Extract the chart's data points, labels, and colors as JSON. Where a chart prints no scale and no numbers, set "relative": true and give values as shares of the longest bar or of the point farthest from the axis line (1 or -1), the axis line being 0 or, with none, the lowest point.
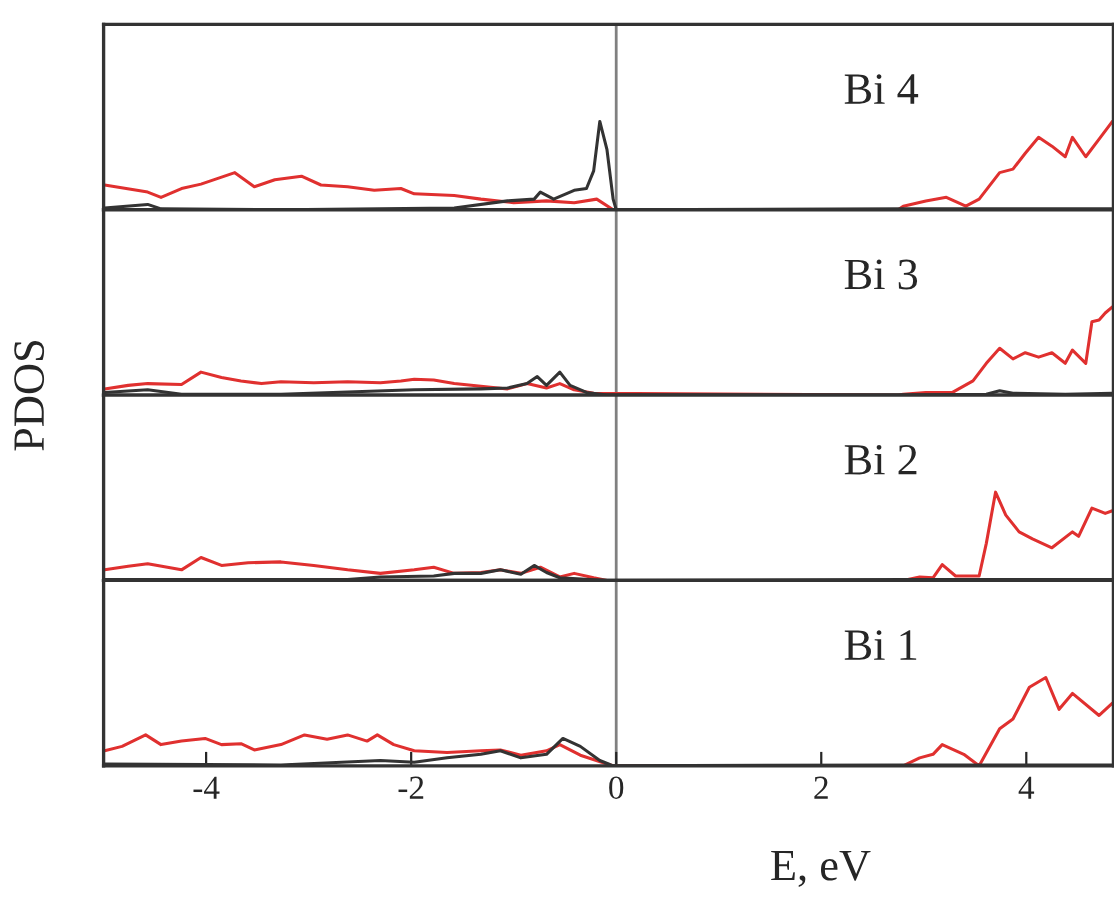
{
  "chart_data": [
    {
      "type": "line",
      "relative": true,
      "xlim": [
        -5,
        4.85
      ],
      "tick_labels": false,
      "annotations": [
        "Bi 4"
      ],
      "ref_lines": [
        {
          "axis": "x",
          "value": 0,
          "color": "#808080"
        }
      ],
      "series": [
        {
          "color": "#e0302f",
          "x": [
            -4.99,
            -4.57,
            -4.44,
            -4.24,
            -4.05,
            -3.72,
            -3.53,
            -3.33,
            -3.07,
            -2.88,
            -2.62,
            -2.36,
            -2.1,
            -1.97,
            -1.58,
            -1.32,
            -1.0,
            -0.68,
            -0.41,
            -0.19,
            -0.03,
            2.75,
            2.8,
            3.02,
            3.22,
            3.41,
            3.54,
            3.74,
            3.87,
            3.99,
            4.12,
            4.25,
            4.38,
            4.45,
            4.58,
            4.71,
            4.84
          ],
          "values": [
            0.28,
            0.2,
            0.14,
            0.24,
            0.29,
            0.42,
            0.26,
            0.34,
            0.38,
            0.28,
            0.26,
            0.22,
            0.24,
            0.18,
            0.16,
            0.12,
            0.08,
            0.1,
            0.08,
            0.12,
            0,
            0,
            0.04,
            0.1,
            0.14,
            0.04,
            0.12,
            0.42,
            0.46,
            0.64,
            0.82,
            0.72,
            0.6,
            0.82,
            0.6,
            0.8,
            1.0
          ]
        },
        {
          "color": "#333333",
          "x": [
            -4.99,
            -4.57,
            -4.44,
            -3.27,
            -1.58,
            -1.06,
            -0.8,
            -0.74,
            -0.61,
            -0.41,
            -0.29,
            -0.22,
            -0.16,
            -0.09,
            -0.03,
            0.0,
            2.8,
            4.84
          ],
          "values": [
            0.02,
            0.06,
            0.01,
            0,
            0.02,
            0.1,
            0.12,
            0.2,
            0.12,
            0.22,
            0.24,
            0.44,
            1.0,
            0.68,
            0.12,
            0,
            0.01,
            0.01
          ]
        }
      ]
    },
    {
      "type": "line",
      "relative": true,
      "xlim": [
        -5,
        4.85
      ],
      "tick_labels": false,
      "annotations": [
        "Bi 3"
      ],
      "ylabel": "PDOS",
      "ref_lines": [
        {
          "axis": "x",
          "value": 0,
          "color": "#808080"
        }
      ],
      "series": [
        {
          "color": "#e0302f",
          "x": [
            -4.99,
            -4.76,
            -4.57,
            -4.24,
            -4.05,
            -3.85,
            -3.66,
            -3.46,
            -3.27,
            -2.95,
            -2.62,
            -2.3,
            -2.1,
            -1.97,
            -1.78,
            -1.58,
            -1.32,
            -1.06,
            -0.87,
            -0.68,
            -0.55,
            -0.41,
            -0.22,
            2.75,
            2.8,
            3.02,
            3.28,
            3.48,
            3.61,
            3.74,
            3.87,
            3.99,
            4.12,
            4.25,
            4.38,
            4.45,
            4.58,
            4.64,
            4.71,
            4.77,
            4.84
          ],
          "values": [
            0.07,
            0.11,
            0.13,
            0.12,
            0.26,
            0.2,
            0.16,
            0.13,
            0.15,
            0.14,
            0.15,
            0.14,
            0.16,
            0.18,
            0.17,
            0.13,
            0.1,
            0.07,
            0.13,
            0.08,
            0.13,
            0.06,
            0.02,
            0,
            0.01,
            0.03,
            0.03,
            0.16,
            0.36,
            0.53,
            0.41,
            0.48,
            0.43,
            0.48,
            0.36,
            0.51,
            0.36,
            0.83,
            0.85,
            0.93,
            1.0
          ]
        },
        {
          "color": "#333333",
          "x": [
            -4.99,
            -4.57,
            -4.24,
            -3.27,
            -1.97,
            -1.32,
            -1.06,
            -0.87,
            -0.77,
            -0.68,
            -0.55,
            -0.45,
            -0.29,
            -0.09,
            2.8,
            3.61,
            3.74,
            3.87,
            4.38,
            4.84
          ],
          "values": [
            0.03,
            0.06,
            0.01,
            0.01,
            0.06,
            0.07,
            0.08,
            0.13,
            0.21,
            0.11,
            0.26,
            0.11,
            0.03,
            0,
            0,
            0.01,
            0.05,
            0.02,
            0.01,
            0.02
          ]
        }
      ]
    },
    {
      "type": "line",
      "relative": true,
      "xlim": [
        -5,
        4.85
      ],
      "tick_labels": false,
      "annotations": [
        "Bi 2"
      ],
      "ref_lines": [
        {
          "axis": "x",
          "value": 0,
          "color": "#808080"
        }
      ],
      "series": [
        {
          "color": "#e0302f",
          "x": [
            -4.99,
            -4.76,
            -4.57,
            -4.24,
            -4.05,
            -3.85,
            -3.59,
            -3.27,
            -2.95,
            -2.62,
            -2.3,
            -1.97,
            -1.78,
            -1.58,
            -1.32,
            -1.13,
            -0.93,
            -0.74,
            -0.55,
            -0.41,
            -0.22,
            -0.09,
            2.75,
            2.8,
            2.96,
            3.09,
            3.18,
            3.31,
            3.54,
            3.61,
            3.7,
            3.8,
            3.93,
            4.06,
            4.25,
            4.45,
            4.51,
            4.64,
            4.77,
            4.84
          ],
          "values": [
            0.12,
            0.16,
            0.19,
            0.12,
            0.26,
            0.17,
            0.2,
            0.21,
            0.17,
            0.12,
            0.08,
            0.12,
            0.15,
            0.08,
            0.09,
            0.12,
            0.08,
            0.15,
            0.04,
            0.08,
            0.03,
            0,
            0,
            0,
            0.04,
            0.03,
            0.18,
            0.05,
            0.05,
            0.42,
            1.0,
            0.74,
            0.55,
            0.47,
            0.37,
            0.55,
            0.5,
            0.82,
            0.76,
            0.79
          ]
        },
        {
          "color": "#333333",
          "x": [
            -4.99,
            -2.62,
            -2.3,
            -1.78,
            -1.58,
            -1.32,
            -1.13,
            -0.93,
            -0.8,
            -0.68,
            -0.55,
            -0.09,
            2.8,
            4.84
          ],
          "values": [
            0.01,
            0.01,
            0.04,
            0.05,
            0.08,
            0.08,
            0.12,
            0.07,
            0.17,
            0.09,
            0.03,
            0,
            0.01,
            0.01
          ]
        }
      ]
    },
    {
      "type": "line",
      "relative": true,
      "xlim": [
        -5,
        4.85
      ],
      "tick_labels": "x",
      "annotations": [
        "Bi 1"
      ],
      "xlabel": "E, eV",
      "xticks": [
        {
          "value": -4,
          "label": "-4"
        },
        {
          "value": -2,
          "label": "-2"
        },
        0,
        2,
        4
      ],
      "ref_lines": [
        {
          "axis": "x",
          "value": 0,
          "color": "#808080"
        }
      ],
      "series": [
        {
          "color": "#e0302f",
          "x": [
            -4.99,
            -4.82,
            -4.59,
            -4.44,
            -4.24,
            -4.01,
            -3.85,
            -3.66,
            -3.53,
            -3.27,
            -3.04,
            -2.82,
            -2.62,
            -2.43,
            -2.33,
            -2.17,
            -1.97,
            -1.65,
            -1.32,
            -1.13,
            -0.93,
            -0.68,
            -0.55,
            -0.35,
            -0.09,
            -0.03,
            2.8,
            2.96,
            3.09,
            3.18,
            3.39,
            3.54,
            3.74,
            3.87,
            4.03,
            4.19,
            4.32,
            4.45,
            4.71,
            4.84
          ],
          "values": [
            0.17,
            0.22,
            0.35,
            0.24,
            0.28,
            0.31,
            0.24,
            0.25,
            0.18,
            0.24,
            0.35,
            0.3,
            0.35,
            0.28,
            0.35,
            0.24,
            0.17,
            0.15,
            0.17,
            0.18,
            0.12,
            0.17,
            0.24,
            0.12,
            0.02,
            0,
            0,
            0.09,
            0.13,
            0.24,
            0.13,
            0,
            0.42,
            0.53,
            0.89,
            1.0,
            0.64,
            0.82,
            0.57,
            0.71
          ]
        },
        {
          "color": "#333333",
          "x": [
            -4.99,
            -3.27,
            -2.3,
            -1.97,
            -1.65,
            -1.32,
            -1.13,
            -0.93,
            -0.68,
            -0.52,
            -0.35,
            -0.16,
            -0.03,
            2.8,
            4.84
          ],
          "values": [
            0.02,
            0.01,
            0.06,
            0.04,
            0.09,
            0.13,
            0.17,
            0.09,
            0.13,
            0.31,
            0.22,
            0.06,
            0,
            0.01,
            0.01
          ]
        }
      ]
    }
  ]
}
